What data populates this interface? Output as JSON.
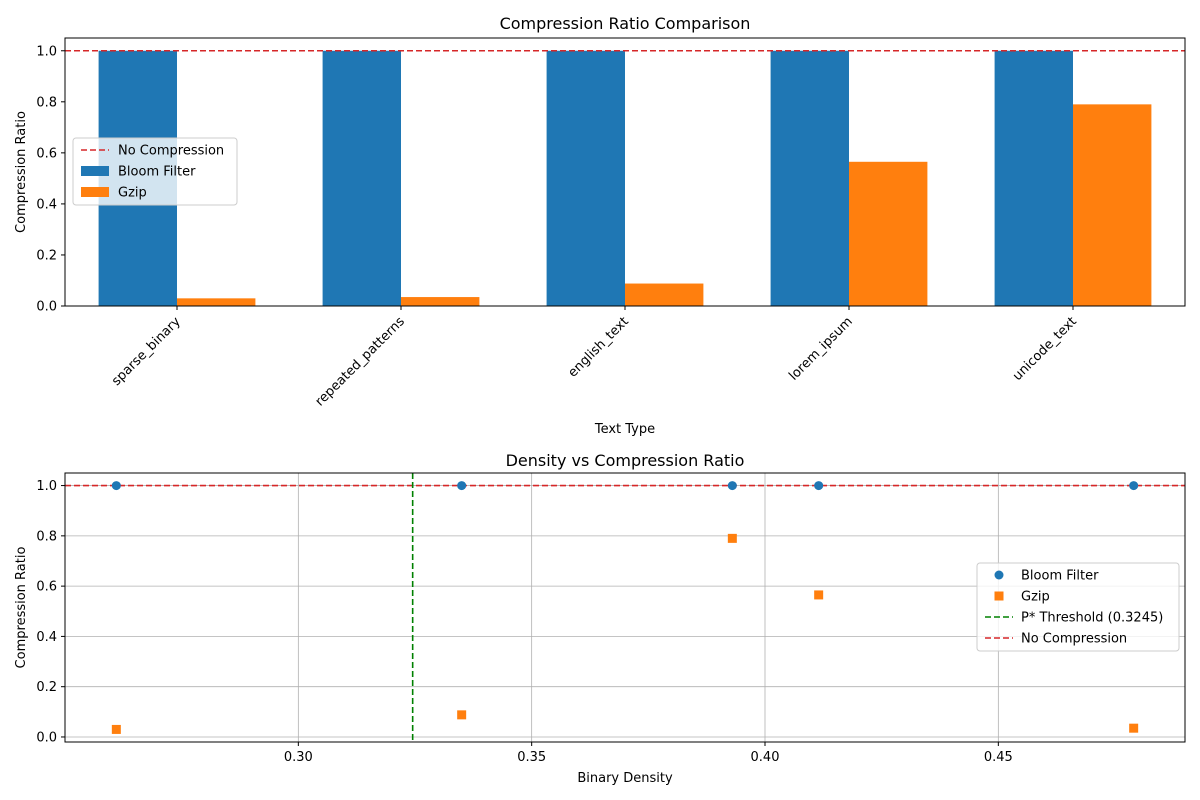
{
  "colors": {
    "bloom": "#1f77b4",
    "gzip": "#ff7f0e",
    "baseline": "#d62728",
    "threshold": "#008000"
  },
  "chart_data": [
    {
      "type": "bar",
      "title": "Compression Ratio Comparison",
      "xlabel": "Text Type",
      "ylabel": "Compression Ratio",
      "categories": [
        "sparse_binary",
        "repeated_patterns",
        "english_text",
        "lorem_ipsum",
        "unicode_text"
      ],
      "series": [
        {
          "name": "Bloom Filter",
          "values": [
            1.0,
            1.0,
            1.0,
            1.0,
            1.0
          ]
        },
        {
          "name": "Gzip",
          "values": [
            0.03,
            0.035,
            0.088,
            0.565,
            0.79
          ]
        }
      ],
      "ylim": [
        0,
        1.0
      ],
      "yticks": [
        0.0,
        0.2,
        0.4,
        0.6,
        0.8,
        1.0
      ],
      "ytick_labels": [
        "0.0",
        "0.2",
        "0.4",
        "0.6",
        "0.8",
        "1.0"
      ],
      "reference_line": {
        "name": "No Compression",
        "y": 1.0,
        "style": "dashed"
      },
      "legend": {
        "position": "center-left",
        "entries": [
          "No Compression",
          "Bloom Filter",
          "Gzip"
        ]
      },
      "grid": false
    },
    {
      "type": "scatter",
      "title": "Density vs Compression Ratio",
      "xlabel": "Binary Density",
      "ylabel": "Compression Ratio",
      "series": [
        {
          "name": "Bloom Filter",
          "marker": "circle",
          "points": [
            [
              0.261,
              1.0
            ],
            [
              0.335,
              1.0
            ],
            [
              0.393,
              1.0
            ],
            [
              0.4115,
              1.0
            ],
            [
              0.479,
              1.0
            ]
          ]
        },
        {
          "name": "Gzip",
          "marker": "square",
          "points": [
            [
              0.261,
              0.03
            ],
            [
              0.335,
              0.088
            ],
            [
              0.393,
              0.79
            ],
            [
              0.4115,
              0.565
            ],
            [
              0.479,
              0.035
            ]
          ]
        }
      ],
      "xlim": [
        0.25,
        0.49
      ],
      "ylim": [
        -0.02,
        1.05
      ],
      "xticks": [
        0.3,
        0.35,
        0.4,
        0.45
      ],
      "xtick_labels": [
        "0.30",
        "0.35",
        "0.40",
        "0.45"
      ],
      "yticks": [
        0.0,
        0.2,
        0.4,
        0.6,
        0.8,
        1.0
      ],
      "ytick_labels": [
        "0.0",
        "0.2",
        "0.4",
        "0.6",
        "0.8",
        "1.0"
      ],
      "threshold_line": {
        "name": "P* Threshold (0.3245)",
        "x": 0.3245,
        "style": "dashed"
      },
      "reference_line": {
        "name": "No Compression",
        "y": 1.0,
        "style": "dashed"
      },
      "legend": {
        "position": "center-right",
        "entries": [
          "Bloom Filter",
          "Gzip",
          "P* Threshold (0.3245)",
          "No Compression"
        ]
      },
      "grid": true
    }
  ]
}
